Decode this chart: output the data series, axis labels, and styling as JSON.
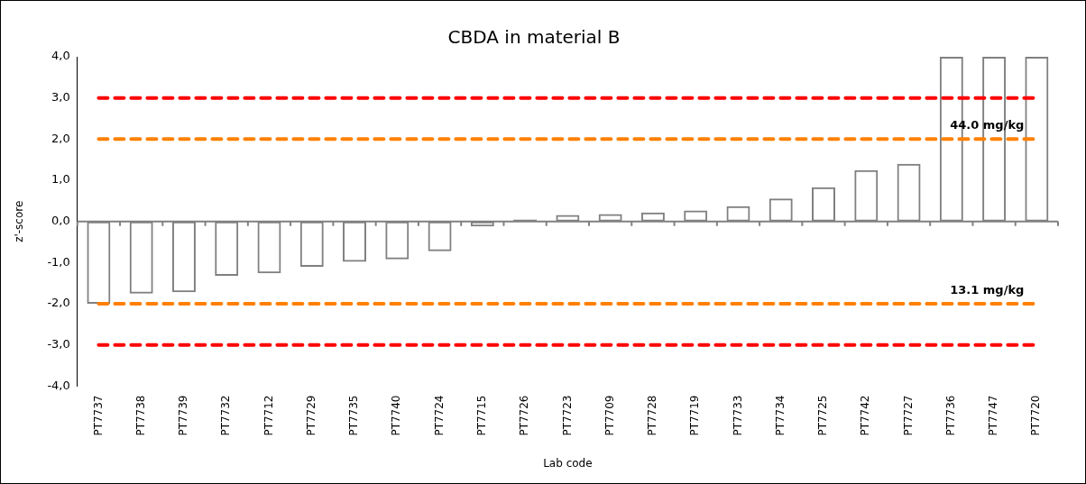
{
  "chart_data": {
    "type": "bar",
    "title": "CBDA in material B",
    "xlabel": "Lab code",
    "ylabel": "z'-score",
    "categories": [
      "PT7737",
      "PT7738",
      "PT7739",
      "PT7732",
      "PT7712",
      "PT7729",
      "PT7735",
      "PT7740",
      "PT7724",
      "PT7715",
      "PT7726",
      "PT7723",
      "PT7709",
      "PT7728",
      "PT7719",
      "PT7733",
      "PT7734",
      "PT7725",
      "PT7742",
      "PT7727",
      "PT7736",
      "PT7747",
      "PT7720"
    ],
    "values": [
      -2.0,
      -1.75,
      -1.72,
      -1.32,
      -1.26,
      -1.1,
      -0.98,
      -0.92,
      -0.72,
      -0.12,
      0.05,
      0.16,
      0.18,
      0.22,
      0.27,
      0.37,
      0.56,
      0.83,
      1.25,
      1.4,
      4.0,
      4.0,
      4.0
    ],
    "color": "#808080",
    "ylim": [
      -4,
      4
    ],
    "yticks": [
      {
        "value": -4,
        "label": "-4,0"
      },
      {
        "value": -3,
        "label": "-3,0"
      },
      {
        "value": -2,
        "label": "-2,0"
      },
      {
        "value": -1,
        "label": "-1,0"
      },
      {
        "value": 0,
        "label": "0,0"
      },
      {
        "value": 1,
        "label": "1,0"
      },
      {
        "value": 2,
        "label": "2,0"
      },
      {
        "value": 3,
        "label": "3,0"
      },
      {
        "value": 4,
        "label": "4,0"
      }
    ],
    "ref_lines": [
      {
        "axis": "y",
        "value": 3,
        "label": null,
        "color": "#ff0000",
        "line_style": "dashed"
      },
      {
        "axis": "y",
        "value": 2,
        "label": "44.0 mg/kg",
        "color": "#ff8000",
        "line_style": "dashed"
      },
      {
        "axis": "y",
        "value": -2,
        "label": "13.1 mg/kg",
        "color": "#ff8000",
        "line_style": "dashed"
      },
      {
        "axis": "y",
        "value": -3,
        "label": null,
        "color": "#ff0000",
        "line_style": "dashed"
      }
    ]
  }
}
